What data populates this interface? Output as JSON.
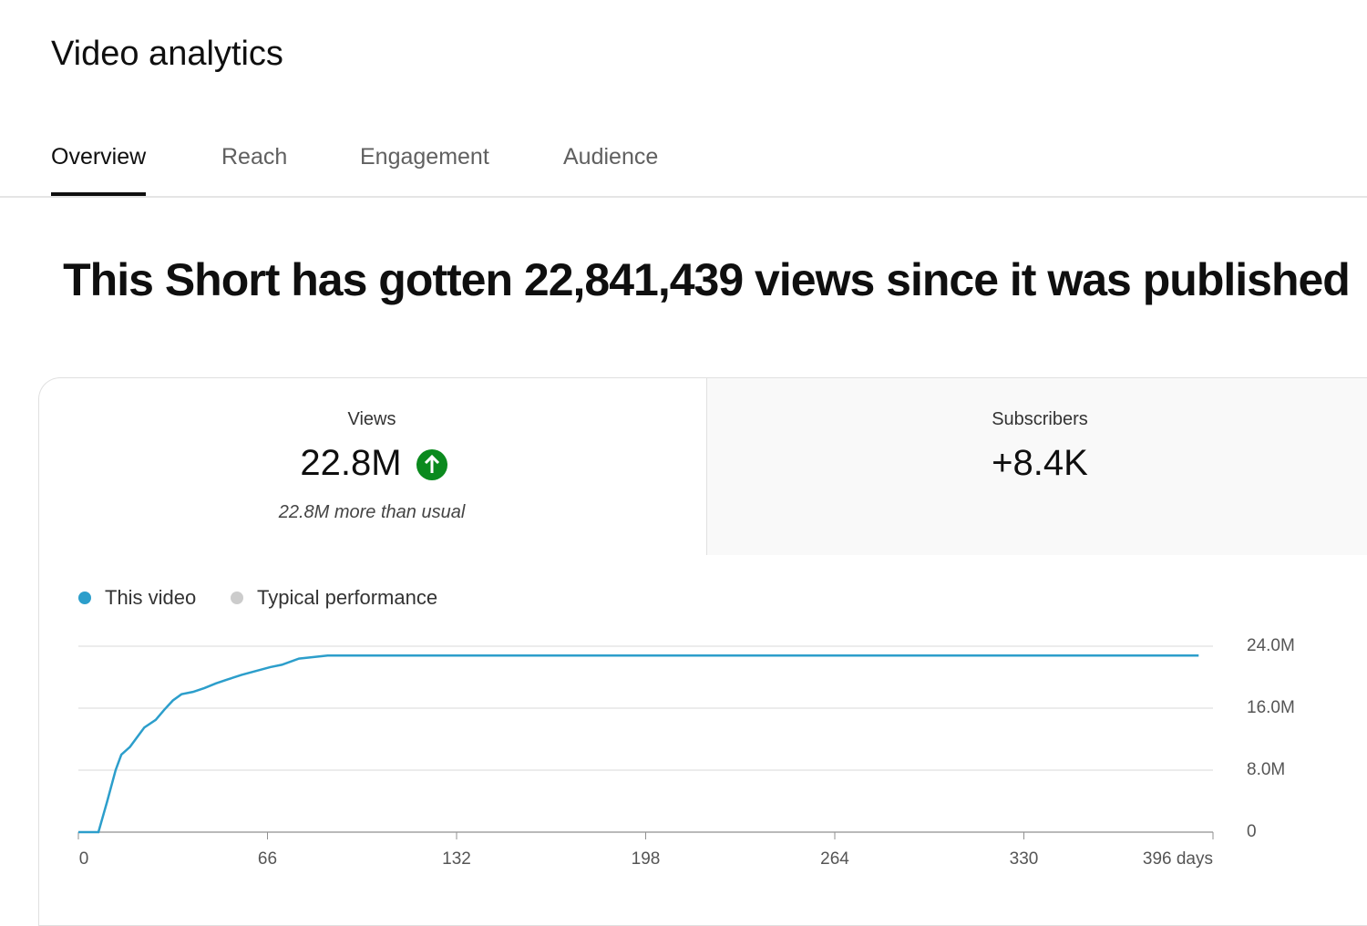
{
  "header": {
    "title": "Video analytics"
  },
  "tabs": {
    "items": [
      "Overview",
      "Reach",
      "Engagement",
      "Audience"
    ],
    "selected": 0
  },
  "headline": "This Short has gotten 22,841,439 views since it was published",
  "cards": [
    {
      "label": "Views",
      "value": "22.8M",
      "note": "22.8M more than usual"
    },
    {
      "label": "Subscribers",
      "value": "+8.4K"
    }
  ],
  "chart_data": {
    "type": "line",
    "x": [
      0,
      5,
      7,
      10,
      13,
      15,
      18,
      20,
      23,
      27,
      30,
      33,
      36,
      40,
      44,
      48,
      52,
      57,
      62,
      67,
      71,
      77,
      87,
      120,
      200,
      300,
      391
    ],
    "series": [
      {
        "name": "This video",
        "color": "#2c9ecb",
        "values": [
          0,
          0,
          0,
          3900000,
          8000000,
          10000000,
          11000000,
          12000000,
          13500000,
          14500000,
          15800000,
          17000000,
          17800000,
          18100000,
          18600000,
          19200000,
          19700000,
          20300000,
          20800000,
          21300000,
          21600000,
          22400000,
          22800000,
          22800000,
          22800000,
          22800000,
          22800000
        ]
      },
      {
        "name": "Typical performance",
        "color": "#cccccc",
        "values": [
          null,
          null,
          null,
          null,
          null,
          null,
          null,
          null,
          null,
          null,
          null,
          null,
          null,
          null,
          null,
          null,
          null,
          null,
          null,
          null,
          null,
          null,
          null,
          null,
          null,
          null,
          null
        ]
      }
    ],
    "xlim": [
      0,
      396
    ],
    "xticks": [
      0,
      66,
      132,
      198,
      264,
      330,
      {
        "value": 396,
        "label": "396 days"
      }
    ],
    "ylim": [
      0,
      24000000
    ],
    "yticks": [
      {
        "value": 0,
        "label": "0"
      },
      {
        "value": 8000000,
        "label": "8.0M"
      },
      {
        "value": 16000000,
        "label": "16.0M"
      },
      {
        "value": 24000000,
        "label": "24.0M"
      }
    ],
    "grid": true
  }
}
